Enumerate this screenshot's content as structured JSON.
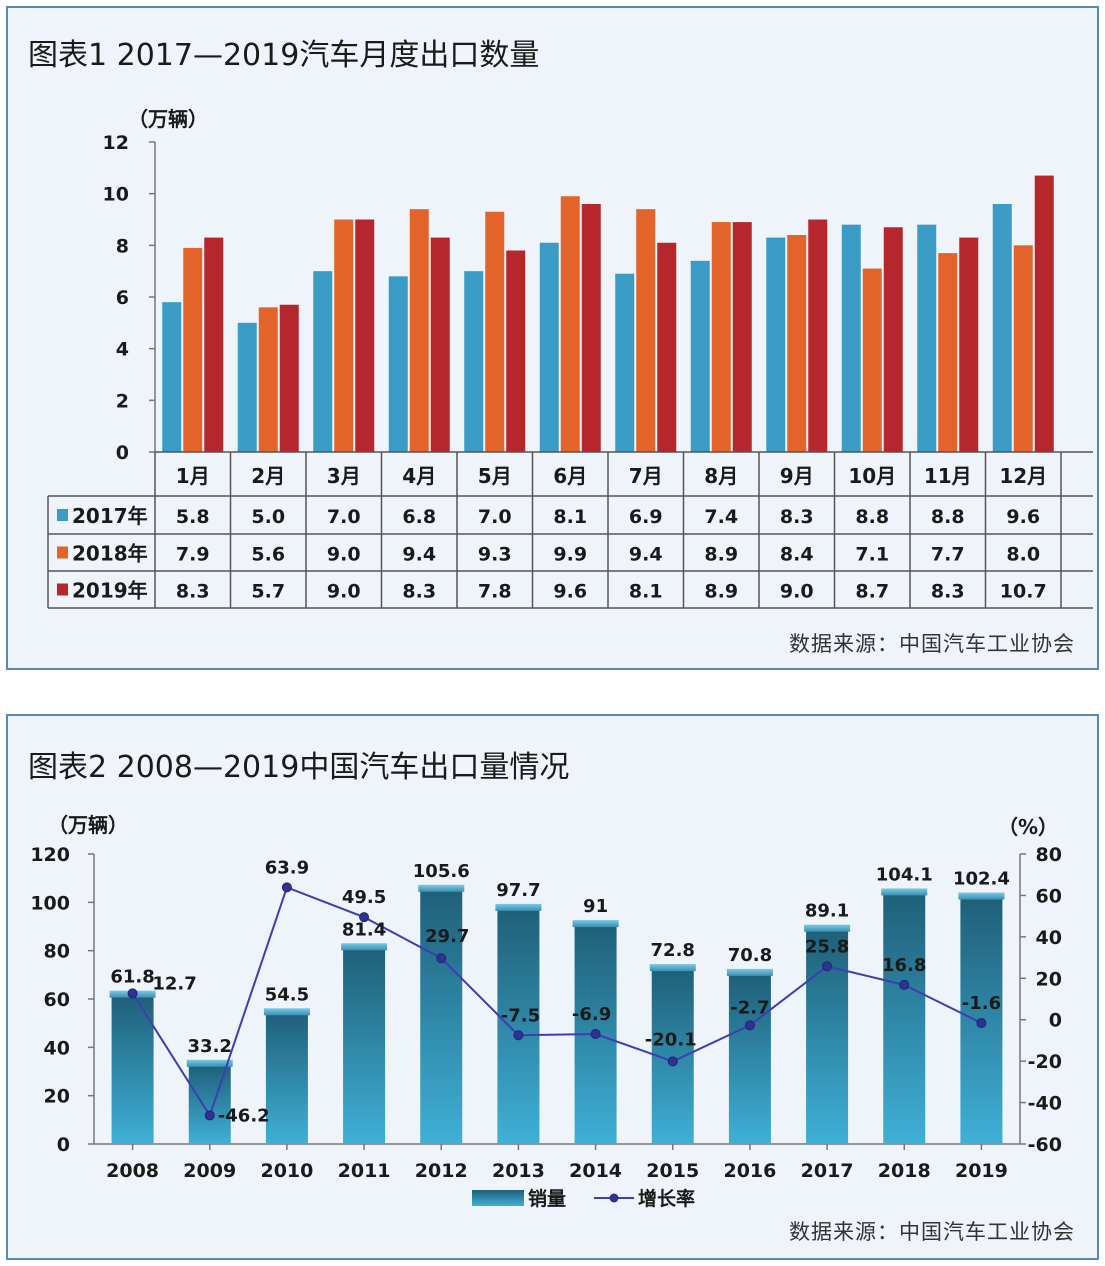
{
  "charts": {
    "monthly": {
      "title": "图表1 2017—2019汽车月度出口数量",
      "source": "数据来源：中国汽车工业协会",
      "chart_data": {
        "type": "bar",
        "title": "图表1 2017—2019汽车月度出口数量",
        "ylabel": "（万辆）",
        "ylim": [
          0,
          12
        ],
        "yticks": [
          "0",
          "2",
          "4",
          "6",
          "8",
          "10",
          "12"
        ],
        "categories": [
          "1月",
          "2月",
          "3月",
          "4月",
          "5月",
          "6月",
          "7月",
          "8月",
          "9月",
          "10月",
          "11月",
          "12月"
        ],
        "series": [
          {
            "name": "2017年",
            "color": "#3a9bc4",
            "values": [
              5.8,
              5.0,
              7.0,
              6.8,
              7.0,
              8.1,
              6.9,
              7.4,
              8.3,
              8.8,
              8.8,
              9.6
            ],
            "labels": [
              "5.8",
              "5.0",
              "7.0",
              "6.8",
              "7.0",
              "8.1",
              "6.9",
              "7.4",
              "8.3",
              "8.8",
              "8.8",
              "9.6"
            ]
          },
          {
            "name": "2018年",
            "color": "#e3642a",
            "values": [
              7.9,
              5.6,
              9.0,
              9.4,
              9.3,
              9.9,
              9.4,
              8.9,
              8.4,
              7.1,
              7.7,
              8.0
            ],
            "labels": [
              "7.9",
              "5.6",
              "9.0",
              "9.4",
              "9.3",
              "9.9",
              "9.4",
              "8.9",
              "8.4",
              "7.1",
              "7.7",
              "8.0"
            ]
          },
          {
            "name": "2019年",
            "color": "#b5272d",
            "values": [
              8.3,
              5.7,
              9.0,
              8.3,
              7.8,
              9.6,
              8.1,
              8.9,
              9.0,
              8.7,
              8.3,
              10.7
            ],
            "labels": [
              "8.3",
              "5.7",
              "9.0",
              "8.3",
              "7.8",
              "9.6",
              "8.1",
              "8.9",
              "9.0",
              "8.7",
              "8.3",
              "10.7"
            ]
          }
        ],
        "grid": false,
        "legend": "data-table"
      }
    },
    "annual": {
      "title": "图表2 2008—2019中国汽车出口量情况",
      "source": "数据来源：中国汽车工业协会",
      "chart_data": {
        "type": "bar",
        "title": "图表2 2008—2019中国汽车出口量情况",
        "ylabel_left": "（万辆）",
        "ylabel_right": "（%）",
        "ylim_left": [
          0,
          120
        ],
        "ylim_right": [
          -60,
          80
        ],
        "yticks_left": [
          "0",
          "20",
          "40",
          "60",
          "80",
          "100",
          "120"
        ],
        "yticks_right": [
          "-60",
          "-40",
          "-20",
          "0",
          "20",
          "40",
          "60",
          "80"
        ],
        "categories": [
          "2008",
          "2009",
          "2010",
          "2011",
          "2012",
          "2013",
          "2014",
          "2015",
          "2016",
          "2017",
          "2018",
          "2019"
        ],
        "series": [
          {
            "name": "销量",
            "type": "bar",
            "axis": "left",
            "color": "#2b8fb1",
            "values": [
              61.8,
              33.2,
              54.5,
              81.4,
              105.6,
              97.7,
              91,
              72.8,
              70.8,
              89.1,
              104.1,
              102.4
            ],
            "labels": [
              "61.8",
              "33.2",
              "54.5",
              "81.4",
              "105.6",
              "97.7",
              "91",
              "72.8",
              "70.8",
              "89.1",
              "104.1",
              "102.4"
            ]
          },
          {
            "name": "增长率",
            "type": "line",
            "axis": "right",
            "color": "#3b3fb0",
            "values": [
              12.7,
              -46.2,
              63.9,
              49.5,
              29.7,
              -7.5,
              -6.9,
              -20.1,
              -2.7,
              25.8,
              16.8,
              -1.6
            ],
            "labels": [
              "12.7",
              "-46.2",
              "63.9",
              "49.5",
              "29.7",
              "-7.5",
              "-6.9",
              "-20.1",
              "-2.7",
              "25.8",
              "16.8",
              "-1.6"
            ]
          }
        ],
        "grid": false,
        "legend": "bottom"
      }
    }
  }
}
